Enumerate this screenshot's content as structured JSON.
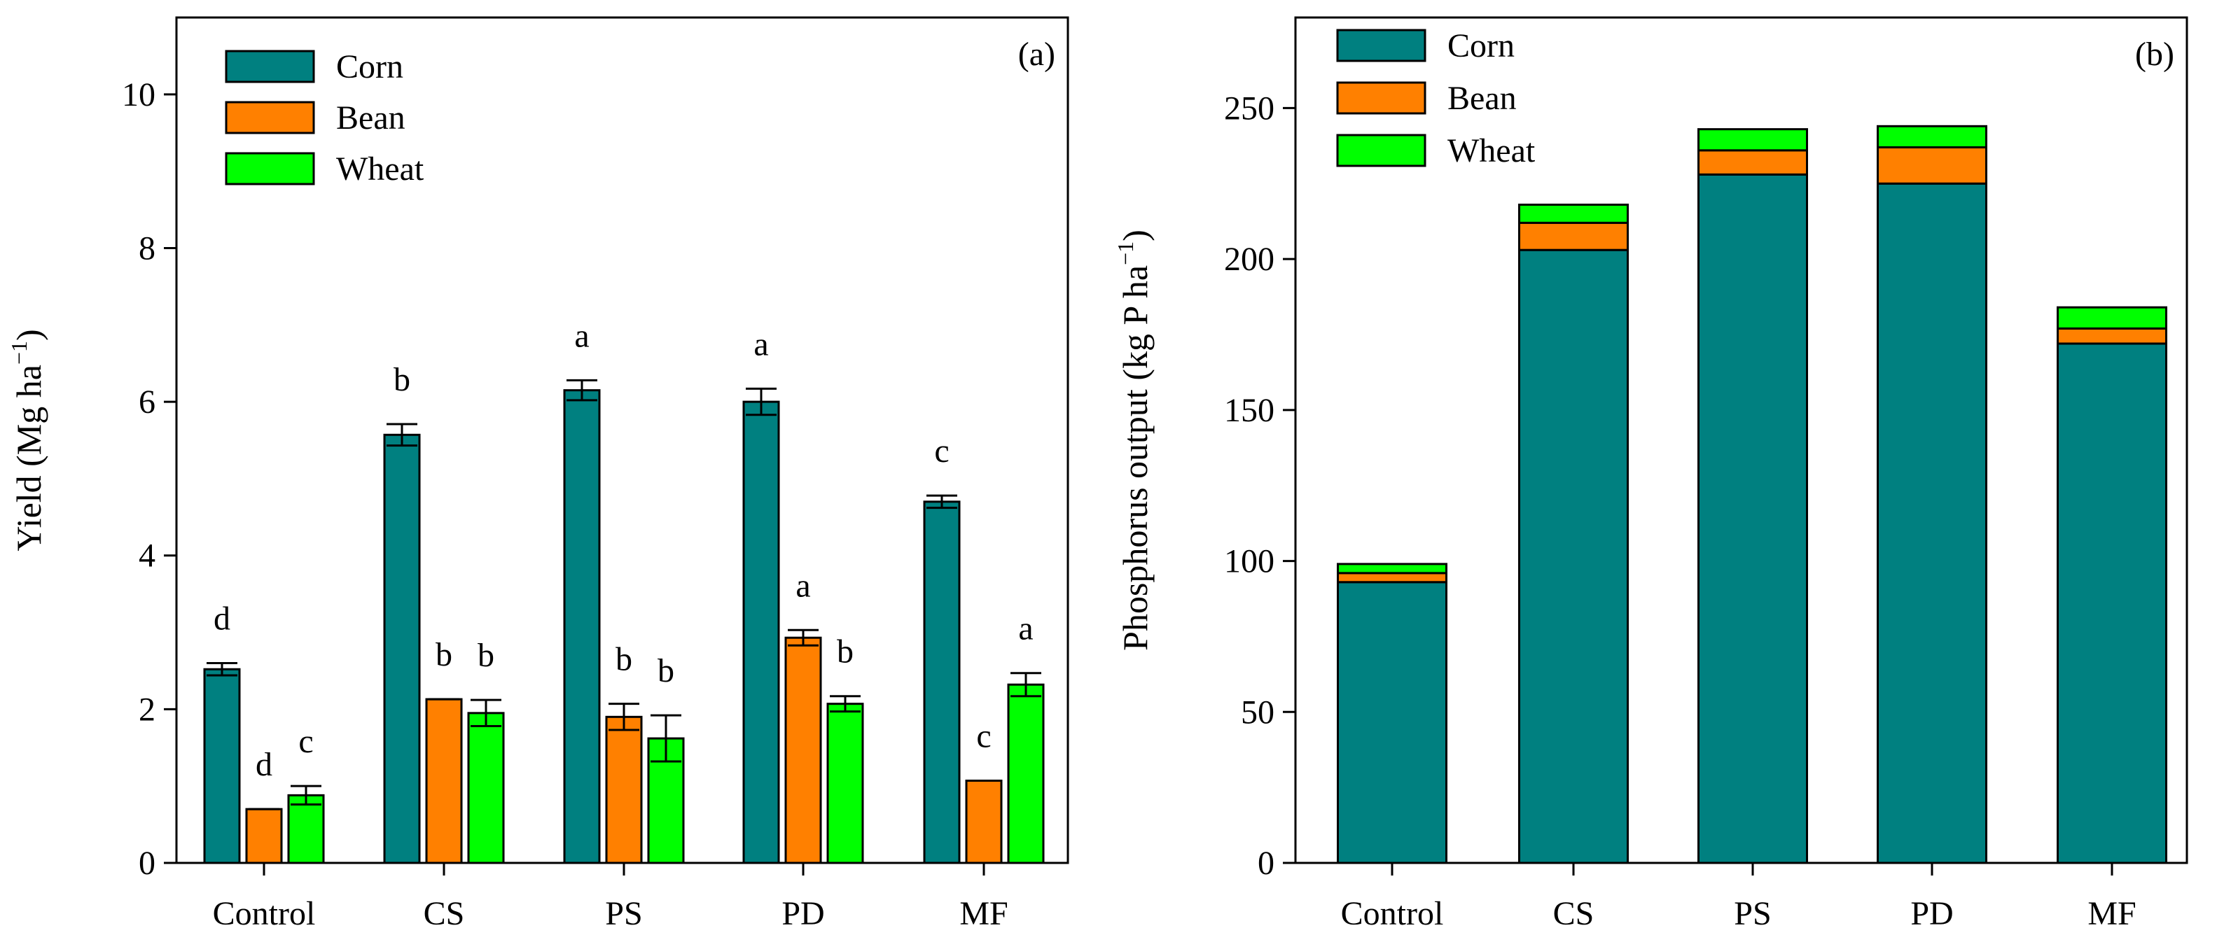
{
  "colors": {
    "corn": "#008080",
    "bean": "#FF8000",
    "wheat": "#00FF00",
    "axis": "#000000"
  },
  "chart_data": [
    {
      "type": "bar",
      "panel_label": "(a)",
      "xlabel": "",
      "ylabel": "Yield (Mg ha",
      "ylabel_sup": "−1",
      "ylabel_close": ")",
      "ylim": [
        0,
        11
      ],
      "yticks": [
        0,
        2,
        4,
        6,
        8,
        10
      ],
      "grid": false,
      "legend_position": "top-left",
      "categories": [
        "Control",
        "CS",
        "PS",
        "PD",
        "MF"
      ],
      "series": [
        {
          "name": "Corn",
          "color": "#008080",
          "values": [
            2.52,
            5.57,
            6.15,
            6.0,
            4.7
          ],
          "errors": [
            0.08,
            0.14,
            0.13,
            0.17,
            0.08
          ],
          "letters": [
            "d",
            "b",
            "a",
            "a",
            "c"
          ]
        },
        {
          "name": "Bean",
          "color": "#FF8000",
          "values": [
            0.7,
            2.13,
            1.9,
            2.93,
            1.07
          ],
          "errors": [
            0.0,
            0.0,
            0.17,
            0.1,
            0.0
          ],
          "letters": [
            "d",
            "b",
            "b",
            "a",
            "c"
          ]
        },
        {
          "name": "Wheat",
          "color": "#00FF00",
          "values": [
            0.88,
            1.95,
            1.62,
            2.07,
            2.32
          ],
          "errors": [
            0.12,
            0.17,
            0.3,
            0.1,
            0.15
          ],
          "letters": [
            "c",
            "b",
            "b",
            "b",
            "a"
          ]
        }
      ]
    },
    {
      "type": "bar",
      "stacked": true,
      "panel_label": "(b)",
      "xlabel": "",
      "ylabel": "Phosphorus output (kg P ha",
      "ylabel_sup": "−1",
      "ylabel_close": ")",
      "ylim": [
        0,
        280
      ],
      "yticks": [
        0,
        50,
        100,
        150,
        200,
        250
      ],
      "grid": false,
      "legend_position": "top-left",
      "categories": [
        "Control",
        "CS",
        "PS",
        "PD",
        "MF"
      ],
      "series": [
        {
          "name": "Corn",
          "color": "#008080",
          "values": [
            93,
            203,
            228,
            225,
            172
          ]
        },
        {
          "name": "Bean",
          "color": "#FF8000",
          "values": [
            3,
            9,
            8,
            12,
            5
          ]
        },
        {
          "name": "Wheat",
          "color": "#00FF00",
          "values": [
            3,
            6,
            7,
            7,
            7
          ]
        }
      ]
    }
  ]
}
